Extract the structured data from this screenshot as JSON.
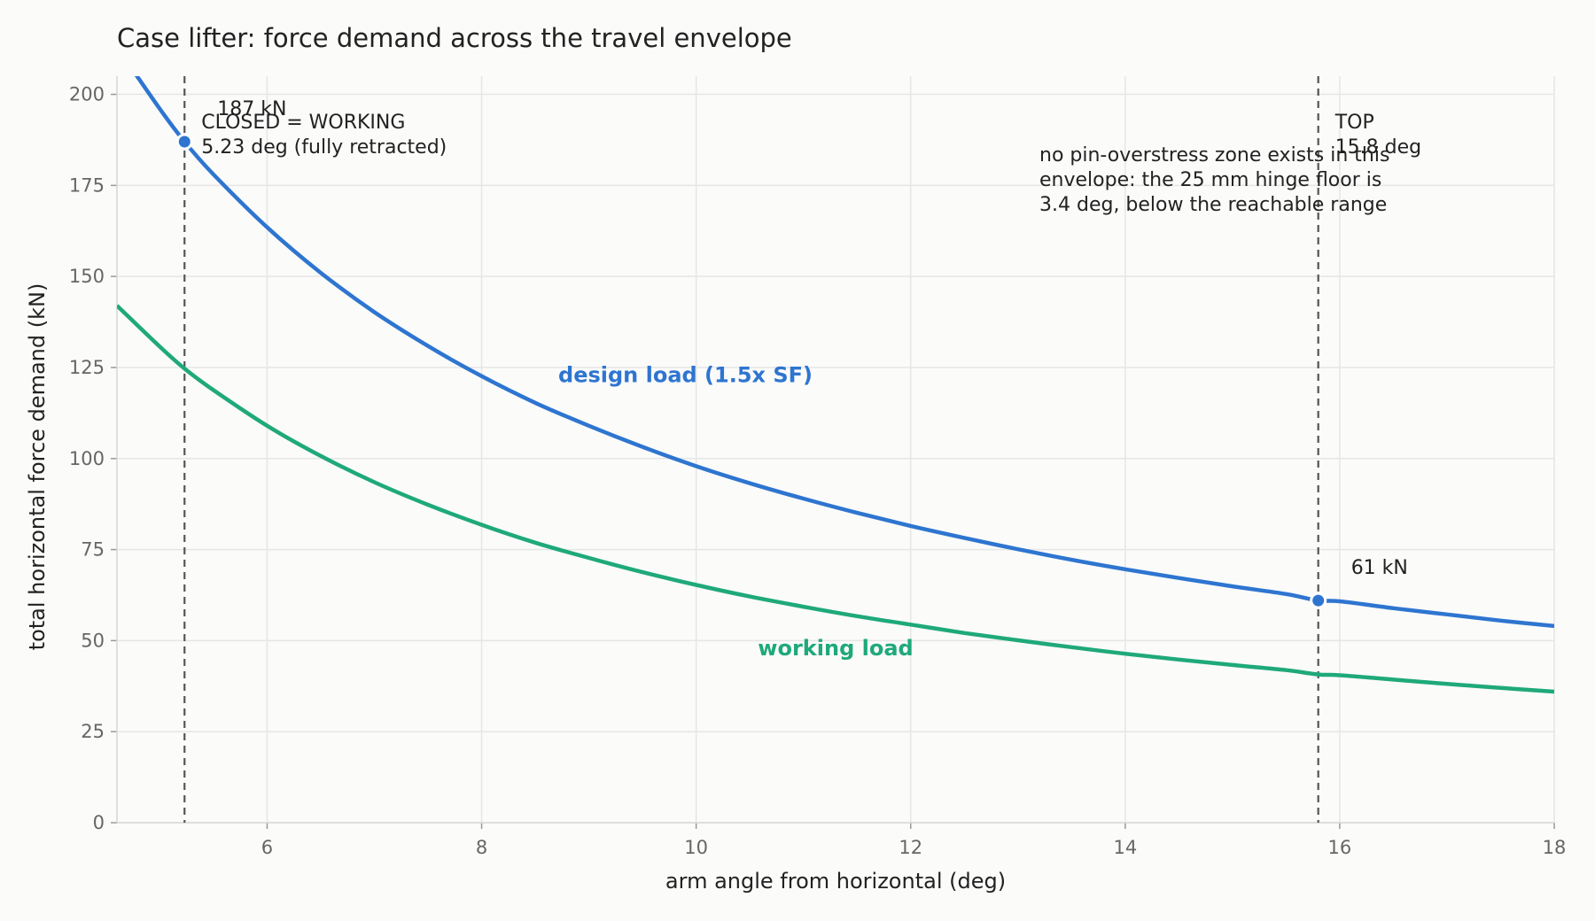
{
  "chart_data": {
    "type": "line",
    "title": "Case lifter: force demand across the travel envelope",
    "xlabel": "arm angle from horizontal (deg)",
    "ylabel": "total horizontal force demand (kN)",
    "xlim": [
      4.6,
      18
    ],
    "ylim": [
      0,
      205
    ],
    "xticks": [
      6,
      8,
      10,
      12,
      14,
      16,
      18
    ],
    "yticks": [
      0,
      25,
      50,
      75,
      100,
      125,
      150,
      175,
      200
    ],
    "grid": true,
    "legend": "none",
    "series": [
      {
        "name": "design load (1.5x SF)",
        "color": "#2e75d0",
        "x": [
          4.6,
          5,
          5.23,
          5.5,
          6,
          6.5,
          7,
          7.5,
          8,
          8.5,
          9,
          9.5,
          10,
          10.5,
          11,
          11.5,
          12,
          12.5,
          13,
          13.5,
          14,
          14.5,
          15,
          15.5,
          15.8,
          16,
          16.5,
          17,
          17.5,
          18
        ],
        "y": [
          213,
          196,
          187,
          178,
          163.5,
          151,
          140.2,
          130.9,
          122.6,
          115.3,
          109,
          103.2,
          97.9,
          93.2,
          89,
          85.1,
          81.5,
          78.2,
          75.1,
          72.2,
          69.6,
          67.2,
          64.9,
          62.8,
          61,
          60.8,
          58.9,
          57.2,
          55.5,
          54
        ]
      },
      {
        "name": "working load",
        "color": "#1fa97a",
        "x": [
          4.6,
          5,
          5.23,
          5.5,
          6,
          6.5,
          7,
          7.5,
          8,
          8.5,
          9,
          9.5,
          10,
          10.5,
          11,
          11.5,
          12,
          12.5,
          13,
          13.5,
          14,
          14.5,
          15,
          15.5,
          15.8,
          16,
          16.5,
          17,
          17.5,
          18
        ],
        "y": [
          142,
          130.7,
          124.7,
          118.8,
          109,
          100.7,
          93.5,
          87.3,
          81.8,
          76.9,
          72.7,
          68.8,
          65.3,
          62.1,
          59.3,
          56.7,
          54.4,
          52.1,
          50.1,
          48.2,
          46.4,
          44.8,
          43.3,
          41.9,
          40.7,
          40.5,
          39.3,
          38.1,
          37,
          36
        ]
      }
    ],
    "markers": [
      {
        "x": 5.23,
        "y": 187,
        "label": "187 kN",
        "color": "#2e75d0"
      },
      {
        "x": 15.8,
        "y": 61,
        "label": "61 kN",
        "color": "#2e75d0"
      }
    ],
    "vlines": [
      {
        "x": 5.23,
        "label_lines": [
          "CLOSED = WORKING",
          "5.23 deg (fully retracted)"
        ]
      },
      {
        "x": 15.8,
        "label_lines": [
          "TOP",
          "15.8 deg"
        ]
      }
    ],
    "note_lines": [
      "no pin-overstress zone exists in this",
      "envelope: the 25 mm hinge floor is",
      "3.4 deg, below the reachable range"
    ],
    "series_labels": [
      {
        "text": "design load (1.5x SF)",
        "x": 9.9,
        "y": 121,
        "color": "#2e75d0"
      },
      {
        "text": "working load",
        "x": 11.3,
        "y": 46,
        "color": "#1fa97a"
      }
    ]
  }
}
